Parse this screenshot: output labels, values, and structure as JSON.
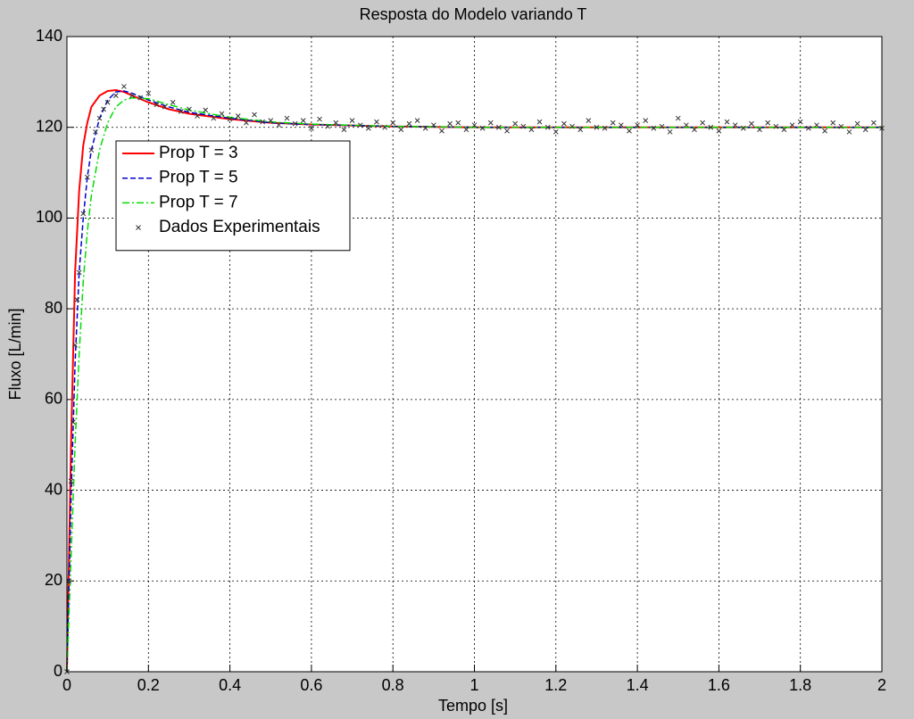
{
  "chart_data": {
    "type": "line",
    "title": "Resposta do Modelo variando T",
    "x_label": "Tempo [s]",
    "y_label": "Fluxo [L/min]",
    "xlim": [
      0,
      2
    ],
    "ylim": [
      0,
      140
    ],
    "xticks": [
      0,
      0.2,
      0.4,
      0.6,
      0.8,
      1,
      1.2,
      1.4,
      1.6,
      1.8,
      2
    ],
    "yticks": [
      0,
      20,
      40,
      60,
      80,
      100,
      120,
      140
    ],
    "grid": true,
    "legend": "upper left",
    "series": [
      {
        "name": "Prop T = 3",
        "color": "#ff0000",
        "line_style": "solid",
        "x": [
          0,
          0.01,
          0.02,
          0.03,
          0.04,
          0.05,
          0.06,
          0.08,
          0.1,
          0.12,
          0.14,
          0.16,
          0.2,
          0.25,
          0.3,
          0.4,
          0.5,
          0.6,
          0.8,
          1,
          1.2,
          1.4,
          1.6,
          1.8,
          2
        ],
        "values": [
          0,
          50,
          88,
          106,
          116,
          121,
          124.5,
          127,
          128,
          128.2,
          127.8,
          127,
          125.5,
          124,
          123,
          121.8,
          121,
          120.6,
          120.2,
          120,
          120,
          120,
          120,
          120,
          120
        ]
      },
      {
        "name": "Prop T = 5",
        "color": "#0000cc",
        "line_style": "dashed",
        "x": [
          0,
          0.01,
          0.02,
          0.03,
          0.04,
          0.05,
          0.06,
          0.08,
          0.1,
          0.12,
          0.14,
          0.16,
          0.2,
          0.25,
          0.3,
          0.4,
          0.5,
          0.6,
          0.8,
          1,
          1.2,
          1.4,
          1.6,
          1.8,
          2
        ],
        "values": [
          0,
          38,
          68,
          88,
          100,
          109,
          115,
          122,
          126,
          127.8,
          128,
          127.5,
          126,
          124.5,
          123.3,
          122,
          121,
          120.6,
          120.2,
          120,
          120,
          120,
          120,
          120,
          120
        ]
      },
      {
        "name": "Prop T = 7",
        "color": "#00dd00",
        "line_style": "dashdot",
        "x": [
          0,
          0.01,
          0.02,
          0.03,
          0.04,
          0.05,
          0.06,
          0.08,
          0.1,
          0.12,
          0.14,
          0.16,
          0.2,
          0.25,
          0.3,
          0.4,
          0.5,
          0.6,
          0.8,
          1,
          1.2,
          1.4,
          1.6,
          1.8,
          2
        ],
        "values": [
          0,
          25,
          50,
          70,
          86,
          97,
          105,
          115,
          121,
          124.5,
          126,
          126.5,
          126.3,
          125,
          123.8,
          122.2,
          121.2,
          120.7,
          120.2,
          120,
          120,
          120,
          120,
          120,
          120
        ]
      },
      {
        "name": "Dados Experimentais",
        "color": "#333333",
        "line_style": "none",
        "marker": "x",
        "x": [
          0,
          0.005,
          0.01,
          0.015,
          0.02,
          0.025,
          0.03,
          0.04,
          0.05,
          0.06,
          0.07,
          0.08,
          0.09,
          0.1,
          0.12,
          0.14,
          0.16,
          0.18,
          0.2,
          0.22,
          0.24,
          0.26,
          0.28,
          0.3,
          0.32,
          0.34,
          0.36,
          0.38,
          0.4,
          0.42,
          0.44,
          0.46,
          0.48,
          0.5,
          0.52,
          0.54,
          0.56,
          0.58,
          0.6,
          0.62,
          0.64,
          0.66,
          0.68,
          0.7,
          0.72,
          0.74,
          0.76,
          0.78,
          0.8,
          0.82,
          0.84,
          0.86,
          0.88,
          0.9,
          0.92,
          0.94,
          0.96,
          0.98,
          1,
          1.02,
          1.04,
          1.06,
          1.08,
          1.1,
          1.12,
          1.14,
          1.16,
          1.18,
          1.2,
          1.22,
          1.24,
          1.26,
          1.28,
          1.3,
          1.32,
          1.34,
          1.36,
          1.38,
          1.4,
          1.42,
          1.44,
          1.46,
          1.48,
          1.5,
          1.52,
          1.54,
          1.56,
          1.58,
          1.6,
          1.62,
          1.64,
          1.66,
          1.68,
          1.7,
          1.72,
          1.74,
          1.76,
          1.78,
          1.8,
          1.82,
          1.84,
          1.86,
          1.88,
          1.9,
          1.92,
          1.94,
          1.96,
          1.98,
          2
        ],
        "values": [
          0,
          20,
          42,
          55,
          72,
          82,
          88,
          101,
          109,
          115,
          119,
          122,
          124,
          125.5,
          127,
          129,
          127,
          126.5,
          127.5,
          125,
          124.5,
          125.5,
          123.5,
          124,
          122.5,
          123.8,
          122,
          123,
          121.8,
          122.5,
          121,
          122.8,
          121.2,
          121.5,
          120.5,
          122,
          120.8,
          121.5,
          119.8,
          121.8,
          120.2,
          121,
          119.5,
          121.5,
          120.5,
          119.8,
          121.2,
          120,
          121,
          119.5,
          120.8,
          121.5,
          119.8,
          120.5,
          119.2,
          120.8,
          121,
          119.5,
          120.5,
          119.8,
          121,
          120,
          119.2,
          120.8,
          120.2,
          119.5,
          121.2,
          120,
          119,
          120.8,
          120.2,
          119.5,
          121.5,
          120,
          119.8,
          121,
          120.5,
          119.2,
          120.5,
          121.5,
          119.8,
          120.2,
          119,
          122,
          120.5,
          119.5,
          121,
          120,
          119.2,
          121.2,
          120.5,
          119.8,
          120.8,
          119.5,
          121,
          120.2,
          119.5,
          120.5,
          121.2,
          119.8,
          120.5,
          119.2,
          121,
          120.2,
          119,
          120.8,
          119.5,
          121,
          119.8
        ]
      }
    ]
  }
}
